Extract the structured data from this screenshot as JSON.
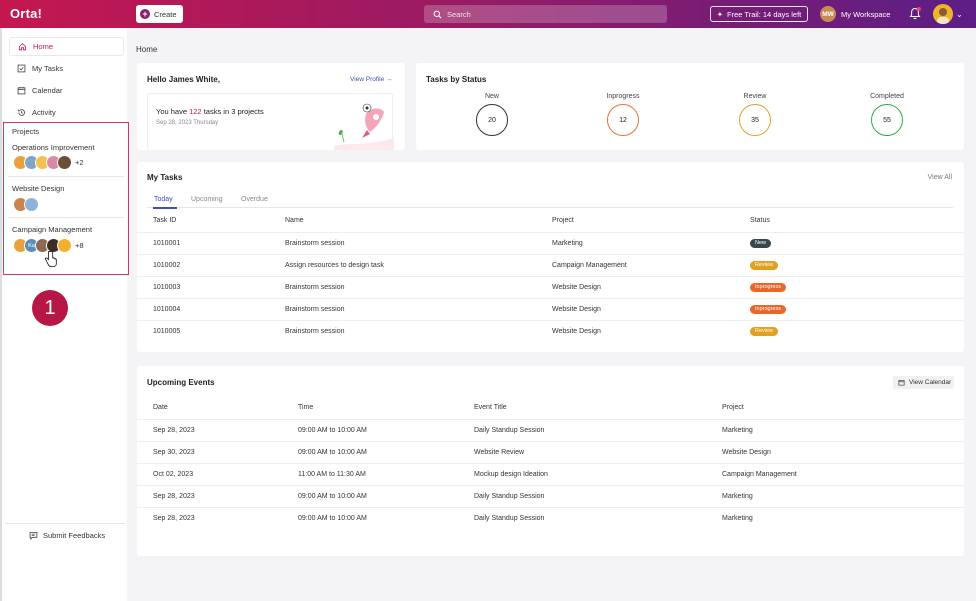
{
  "topbar": {
    "logo": "Orta!",
    "create_label": "Create",
    "search_placeholder": "Search",
    "trial_label": "Free Trail: 14 days left",
    "workspace_initials": "MW",
    "workspace_label": "My Workspace"
  },
  "sidebar": {
    "nav": [
      {
        "label": "Home",
        "icon": "home-icon"
      },
      {
        "label": "My Tasks",
        "icon": "check-square-icon"
      },
      {
        "label": "Calendar",
        "icon": "calendar-icon"
      },
      {
        "label": "Activity",
        "icon": "history-icon"
      }
    ],
    "projects_title": "Projects",
    "projects": [
      {
        "name": "Operations Improvement",
        "more": "+2"
      },
      {
        "name": "Website Design",
        "more": ""
      },
      {
        "name": "Campaign Management",
        "more": "+8",
        "avatar_label": "Ka"
      }
    ],
    "feedback_label": "Submit Feedbacks",
    "step_badge": "1"
  },
  "breadcrumb": "Home",
  "hello": {
    "title": "Hello James White,",
    "view_profile": "View Profile",
    "text_prefix": "You have ",
    "task_count": "122",
    "text_suffix": " tasks in 3 projects",
    "date": "Sep 28, 2023 Thursday"
  },
  "status": {
    "title": "Tasks by Status",
    "items": [
      {
        "label": "New",
        "value": "20",
        "color": "#333333"
      },
      {
        "label": "Inprogress",
        "value": "12",
        "color": "#e8743b"
      },
      {
        "label": "Review",
        "value": "35",
        "color": "#e0a030"
      },
      {
        "label": "Completed",
        "value": "55",
        "color": "#2eaa4a"
      }
    ]
  },
  "tasks": {
    "title": "My Tasks",
    "view_all": "View All",
    "tabs": [
      "Today",
      "Upcoming",
      "Overdue"
    ],
    "headers": [
      "Task ID",
      "Name",
      "Project",
      "Status"
    ],
    "rows": [
      {
        "id": "1010001",
        "name": "Brainstorm session",
        "project": "Marketing",
        "status": "New",
        "color": "#37474f"
      },
      {
        "id": "1010002",
        "name": "Assign resources to design task",
        "project": "Campaign Management",
        "status": "Review",
        "color": "#e0a020"
      },
      {
        "id": "1010003",
        "name": "Brainstorm session",
        "project": "Website Design",
        "status": "Inprogress",
        "color": "#e8672b"
      },
      {
        "id": "1010004",
        "name": "Brainstorm session",
        "project": "Website Design",
        "status": "Inprogress",
        "color": "#e8672b"
      },
      {
        "id": "1010005",
        "name": "Brainstorm session",
        "project": "Website Design",
        "status": "Review",
        "color": "#e0a020"
      }
    ]
  },
  "events": {
    "title": "Upcoming Events",
    "view_calendar": "View Calendar",
    "headers": [
      "Date",
      "Time",
      "Event Title",
      "Project"
    ],
    "rows": [
      {
        "date": "Sep 28, 2023",
        "time": "09:00 AM to 10:00 AM",
        "title": "Daily Standup Session",
        "project": "Marketing"
      },
      {
        "date": "Sep 30, 2023",
        "time": "09:00 AM to 10:00 AM",
        "title": "Website Review",
        "project": "Website Design"
      },
      {
        "date": "Oct 02, 2023",
        "time": "11:00 AM to 11:30 AM",
        "title": "Mockup design Ideation",
        "project": "Campaign Management"
      },
      {
        "date": "Sep 28, 2023",
        "time": "09:00 AM to 10:00 AM",
        "title": "Daily Standup Session",
        "project": "Marketing"
      },
      {
        "date": "Sep 28, 2023",
        "time": "09:00 AM to 10:00 AM",
        "title": "Daily Standup Session",
        "project": "Marketing"
      }
    ]
  }
}
